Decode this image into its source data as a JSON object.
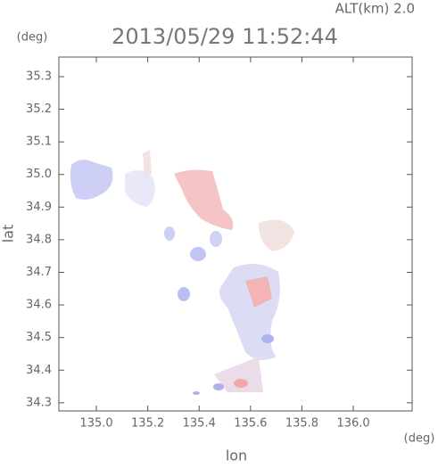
{
  "chart_data": {
    "type": "map",
    "title": "2013/05/29 11:52:44",
    "subtitle": "ALT(km) 2.0",
    "x_label": "lon",
    "y_label": "lat",
    "x_unit": "(deg)",
    "y_unit": "(deg)",
    "xlim": [
      134.854,
      136.229
    ],
    "ylim": [
      34.275,
      35.36
    ],
    "xticks": [
      {
        "value": 135,
        "label": "135.0"
      },
      135.2,
      135.4,
      135.6,
      135.8,
      {
        "value": 136,
        "label": "136.0"
      }
    ],
    "yticks": [
      34.3,
      34.4,
      34.5,
      34.6,
      34.7,
      34.8,
      34.9,
      {
        "value": 35,
        "label": "35.0"
      },
      35.1,
      35.2,
      35.3
    ]
  }
}
